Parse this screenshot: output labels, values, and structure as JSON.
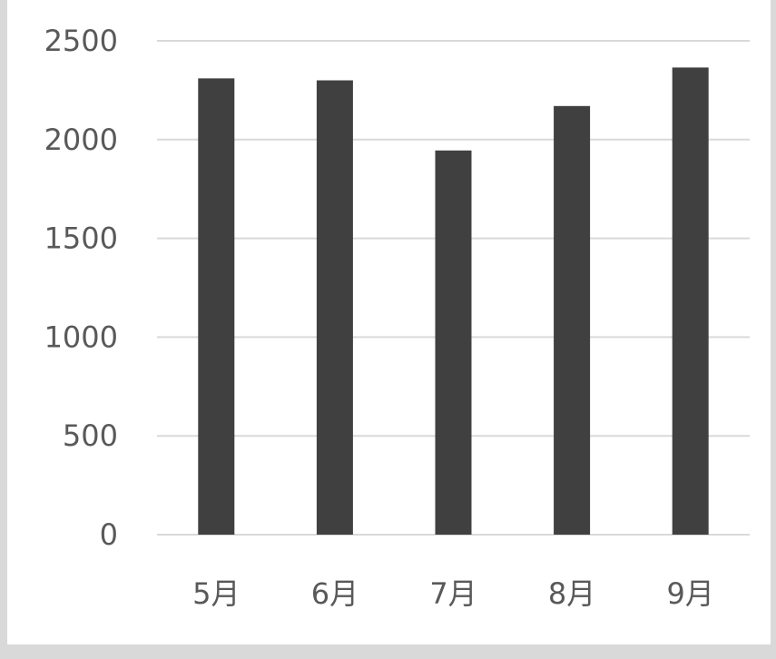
{
  "chart_data": {
    "type": "bar",
    "categories": [
      "5月",
      "6月",
      "7月",
      "8月",
      "9月"
    ],
    "values": [
      2310,
      2300,
      1945,
      2170,
      2365
    ],
    "ylim": [
      0,
      2500
    ],
    "yticks": [
      "0",
      "500",
      "1000",
      "1500",
      "2000",
      "2500"
    ],
    "grid": true,
    "legend": "none",
    "title": "",
    "xlabel": "",
    "ylabel": "",
    "colors": {
      "bar": "#404040",
      "grid": "#d9d9d9",
      "axis": "#d9d9d9",
      "text": "#595959"
    }
  }
}
